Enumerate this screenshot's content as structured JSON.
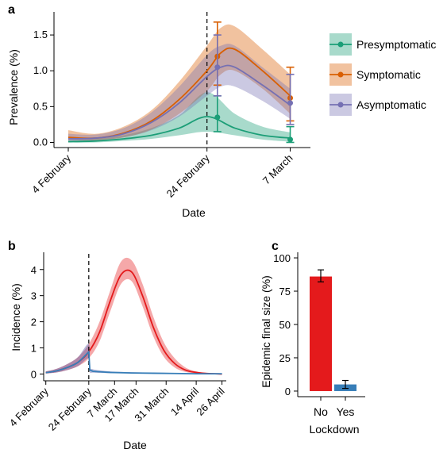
{
  "chart_data": [
    {
      "panel": "a",
      "type": "line",
      "xlabel": "Date",
      "ylabel": "Prevalence (%)",
      "x_ticks": [
        {
          "label": "4 February",
          "day": 0
        },
        {
          "label": "24 February",
          "day": 20
        },
        {
          "label": "7 March",
          "day": 32
        }
      ],
      "y_ticks": [
        "0.0",
        "0.5",
        "1.0",
        "1.5"
      ],
      "ylim": [
        -0.05,
        1.8
      ],
      "xlim_days": [
        0,
        34
      ],
      "reference_line_day": 20,
      "legend_position": "right",
      "series": [
        {
          "name": "Presymptomatic",
          "color": "#1b9e77",
          "x_days": [
            0,
            4,
            8,
            12,
            16,
            20,
            24,
            28,
            32
          ],
          "y": [
            0.01,
            0.02,
            0.05,
            0.1,
            0.2,
            0.36,
            0.2,
            0.1,
            0.06
          ],
          "lower": [
            0.0,
            0.0,
            0.02,
            0.05,
            0.1,
            0.15,
            0.1,
            0.04,
            0.01
          ],
          "upper": [
            0.03,
            0.05,
            0.1,
            0.2,
            0.38,
            0.7,
            0.4,
            0.22,
            0.14
          ],
          "points": [
            {
              "day": 21.5,
              "y": 0.35,
              "lo": 0.15,
              "hi": 0.65
            },
            {
              "day": 32,
              "y": 0.04,
              "lo": 0.0,
              "hi": 0.22
            }
          ]
        },
        {
          "name": "Symptomatic",
          "color": "#d95f02",
          "x_days": [
            0,
            4,
            8,
            12,
            16,
            20,
            22,
            24,
            28,
            32
          ],
          "y": [
            0.07,
            0.06,
            0.13,
            0.3,
            0.6,
            1.0,
            1.25,
            1.3,
            1.0,
            0.65
          ],
          "lower": [
            0.03,
            0.03,
            0.07,
            0.18,
            0.4,
            0.72,
            0.95,
            1.0,
            0.75,
            0.4
          ],
          "upper": [
            0.17,
            0.12,
            0.22,
            0.45,
            0.85,
            1.35,
            1.6,
            1.62,
            1.3,
            0.95
          ],
          "points": [
            {
              "day": 21.5,
              "y": 1.2,
              "lo": 0.8,
              "hi": 1.68
            },
            {
              "day": 32,
              "y": 0.62,
              "lo": 0.3,
              "hi": 1.05
            }
          ]
        },
        {
          "name": "Asymptomatic",
          "color": "#7570b3",
          "x_days": [
            0,
            4,
            8,
            12,
            16,
            20,
            22,
            24,
            28,
            32
          ],
          "y": [
            0.05,
            0.06,
            0.12,
            0.28,
            0.55,
            0.92,
            1.05,
            1.05,
            0.8,
            0.52
          ],
          "lower": [
            0.02,
            0.03,
            0.07,
            0.17,
            0.36,
            0.65,
            0.78,
            0.78,
            0.58,
            0.33
          ],
          "upper": [
            0.12,
            0.11,
            0.2,
            0.42,
            0.78,
            1.22,
            1.35,
            1.35,
            1.05,
            0.75
          ],
          "points": [
            {
              "day": 21.5,
              "y": 1.05,
              "lo": 0.65,
              "hi": 1.5
            },
            {
              "day": 32,
              "y": 0.55,
              "lo": 0.25,
              "hi": 0.95
            }
          ]
        }
      ]
    },
    {
      "panel": "b",
      "type": "line",
      "xlabel": "Date",
      "ylabel": "Incidence (%)",
      "x_ticks": [
        {
          "label": "4 February",
          "day": 0
        },
        {
          "label": "24 February",
          "day": 20
        },
        {
          "label": "7 March",
          "day": 32
        },
        {
          "label": "17 March",
          "day": 42
        },
        {
          "label": "31 March",
          "day": 56
        },
        {
          "label": "14 April",
          "day": 70
        },
        {
          "label": "26 April",
          "day": 82
        }
      ],
      "y_ticks": [
        "0",
        "1",
        "2",
        "3",
        "4"
      ],
      "ylim": [
        -0.2,
        4.6
      ],
      "xlim_days": [
        -1,
        84
      ],
      "reference_line_day": 20,
      "series": [
        {
          "color": "#e41a1c",
          "x_days": [
            0,
            5,
            10,
            15,
            20,
            25,
            30,
            35,
            40,
            45,
            50,
            55,
            60,
            65,
            70,
            75,
            82
          ],
          "y": [
            0.05,
            0.12,
            0.25,
            0.45,
            0.85,
            1.6,
            2.8,
            3.8,
            3.9,
            3.0,
            1.8,
            0.9,
            0.4,
            0.15,
            0.06,
            0.02,
            0.0
          ],
          "lower": [
            0.02,
            0.06,
            0.15,
            0.3,
            0.6,
            1.25,
            2.4,
            3.45,
            3.55,
            2.6,
            1.45,
            0.65,
            0.25,
            0.08,
            0.02,
            0.0,
            0.0
          ],
          "upper": [
            0.1,
            0.2,
            0.38,
            0.65,
            1.15,
            2.0,
            3.2,
            4.3,
            4.35,
            3.45,
            2.2,
            1.2,
            0.6,
            0.25,
            0.1,
            0.04,
            0.01
          ]
        },
        {
          "color": "#377eb8",
          "x_days": [
            0,
            5,
            10,
            15,
            20,
            20.5,
            22,
            30,
            40,
            50,
            60,
            70,
            82
          ],
          "y": [
            0.05,
            0.12,
            0.25,
            0.45,
            0.85,
            0.15,
            0.1,
            0.06,
            0.04,
            0.03,
            0.02,
            0.01,
            0.01
          ],
          "lower": [
            0.02,
            0.06,
            0.15,
            0.3,
            0.6,
            0.08,
            0.05,
            0.03,
            0.02,
            0.01,
            0.0,
            0.0,
            0.0
          ],
          "upper": [
            0.1,
            0.2,
            0.38,
            0.65,
            1.15,
            0.3,
            0.18,
            0.1,
            0.07,
            0.05,
            0.04,
            0.03,
            0.02
          ]
        }
      ]
    },
    {
      "panel": "c",
      "type": "bar",
      "xlabel": "Lockdown",
      "ylabel": "Epidemic final size (%)",
      "categories": [
        "No",
        "Yes"
      ],
      "values": [
        86,
        5
      ],
      "errors": [
        [
          82,
          91
        ],
        [
          2,
          8
        ]
      ],
      "colors": [
        "#e41a1c",
        "#377eb8"
      ],
      "y_ticks": [
        "0",
        "25",
        "50",
        "75",
        "100"
      ],
      "ylim": [
        -3,
        103
      ]
    }
  ]
}
